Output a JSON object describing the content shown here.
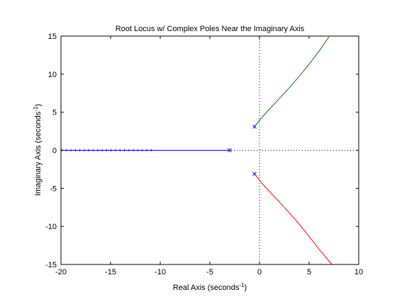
{
  "chart_data": {
    "type": "line",
    "title": "Root Locus w/ Complex Poles Near the Imaginary Axis",
    "xlabel": "Real Axis (seconds",
    "xlabel_sup": "-1",
    "xlabel_tail": ")",
    "ylabel": "Imaginary Axis (seconds",
    "ylabel_sup": "-1",
    "ylabel_tail": ")",
    "xlim": [
      -20,
      10
    ],
    "ylim": [
      -15,
      15
    ],
    "xticks": [
      -20,
      -15,
      -10,
      -5,
      0,
      5,
      10
    ],
    "yticks": [
      -15,
      -10,
      -5,
      0,
      5,
      10,
      15
    ],
    "grid": false,
    "axis_lines_dotted": true,
    "colors": {
      "blue": "#0000ff",
      "green": "#008000",
      "red": "#ff0000",
      "axes": "#000000",
      "dotted": "#000000"
    },
    "poles": [
      {
        "x": -3.0,
        "y": 0.0
      },
      {
        "x": -0.5,
        "y": 3.1
      },
      {
        "x": -0.5,
        "y": -3.1
      }
    ],
    "series": [
      {
        "color": "blue",
        "x": [
          -3.0,
          -4,
          -5,
          -6,
          -7,
          -8,
          -9,
          -10,
          -11,
          -12,
          -13,
          -14,
          -15,
          -16,
          -17,
          -18,
          -19,
          -20
        ],
        "y": [
          0,
          0,
          0,
          0,
          0,
          0,
          0,
          0,
          0,
          0,
          0,
          0,
          0,
          0,
          0,
          0,
          0,
          0
        ],
        "markers_from_x": -10.9
      },
      {
        "color": "green",
        "x": [
          -0.5,
          -0.2,
          0.3,
          1.0,
          2.0,
          3.0,
          4.0,
          5.0,
          6.0,
          7.0
        ],
        "y": [
          3.1,
          3.6,
          4.4,
          5.4,
          6.8,
          8.2,
          9.7,
          11.3,
          13.0,
          14.9
        ]
      },
      {
        "color": "red",
        "x": [
          -0.5,
          -0.2,
          0.3,
          1.0,
          2.0,
          3.0,
          4.0,
          5.0,
          6.0,
          7.3
        ],
        "y": [
          -3.1,
          -3.6,
          -4.4,
          -5.4,
          -6.8,
          -8.2,
          -9.7,
          -11.3,
          -13.0,
          -15.0
        ]
      }
    ]
  }
}
